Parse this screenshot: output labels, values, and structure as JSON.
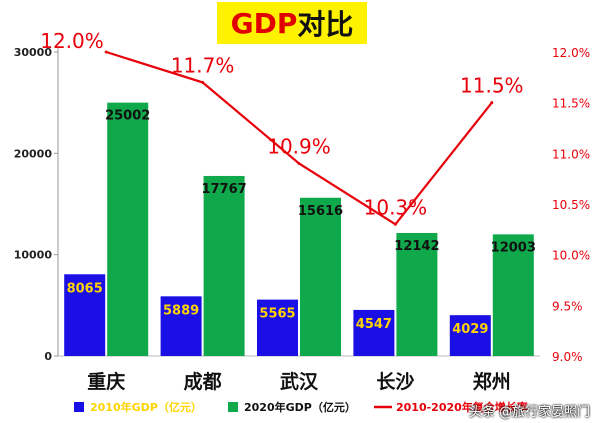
{
  "title": {
    "part1": "GDP",
    "part2": "对比"
  },
  "watermark": "头条 @旅行家晏照门",
  "colors": {
    "bar2010": "#1a10e6",
    "bar2020": "#0fa84a",
    "line": "#e8000b",
    "label2010": "#ffd400",
    "label2020": "#111111",
    "background": "#ffffff"
  },
  "chart_data": {
    "type": "bar",
    "categories": [
      "重庆",
      "成都",
      "武汉",
      "长沙",
      "郑州"
    ],
    "series": [
      {
        "name": "2010年GDP（亿元）",
        "type": "bar",
        "axis": "left",
        "values": [
          8065,
          5889,
          5565,
          4547,
          4029
        ]
      },
      {
        "name": "2020年GDP（亿元）",
        "type": "bar",
        "axis": "left",
        "values": [
          25002,
          17767,
          15616,
          12142,
          12003
        ]
      },
      {
        "name": "2010-2020年复合增长率",
        "type": "line",
        "axis": "right",
        "values": [
          12.0,
          11.7,
          10.9,
          10.3,
          11.5
        ],
        "labels": [
          "12.0%",
          "11.7%",
          "10.9%",
          "10.3%",
          "11.5%"
        ]
      }
    ],
    "y_left": {
      "min": 0,
      "max": 30000,
      "ticks": [
        0,
        10000,
        20000,
        30000
      ]
    },
    "y_right": {
      "min": 9.0,
      "max": 12.0,
      "ticks": [
        9.0,
        9.5,
        10.0,
        10.5,
        11.0,
        11.5,
        12.0
      ],
      "tick_labels": [
        "9.0%",
        "9.5%",
        "10.0%",
        "10.5%",
        "11.0%",
        "11.5%",
        "12.0%"
      ]
    },
    "legend": {
      "position": "bottom",
      "entries": [
        "2010年GDP（亿元）",
        "2020年GDP（亿元）",
        "2010-2020年复合增长率"
      ]
    }
  }
}
